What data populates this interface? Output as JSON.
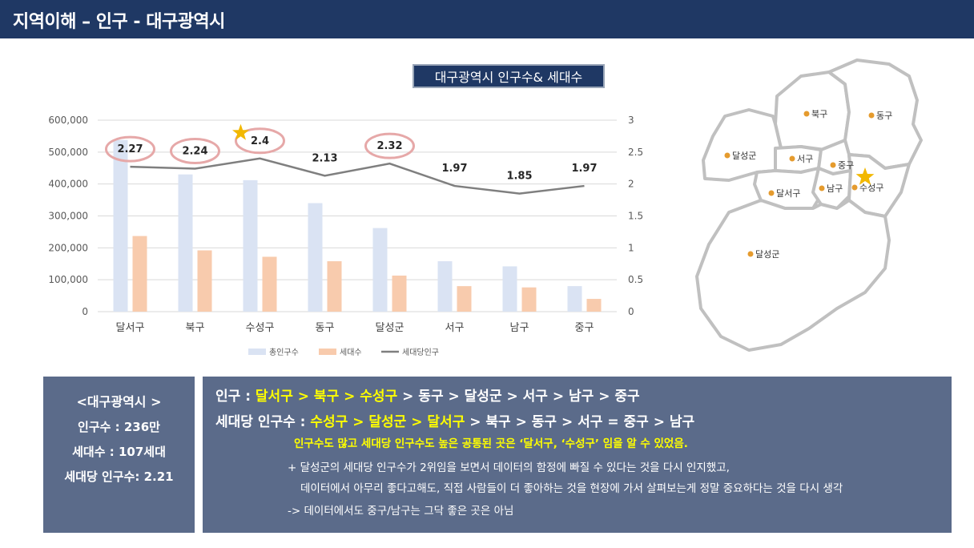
{
  "header": {
    "title": "지역이해 – 인구 - 대구광역시"
  },
  "chart_title": "대구광역시 인구수& 세대수",
  "chart_data": {
    "type": "bar",
    "categories": [
      "달서구",
      "북구",
      "수성구",
      "동구",
      "달성군",
      "서구",
      "남구",
      "중구"
    ],
    "series": [
      {
        "name": "총인구수",
        "type": "bar",
        "axis": "left",
        "color": "#dae3f3",
        "values": [
          538000,
          430000,
          412000,
          340000,
          262000,
          158000,
          142000,
          80000
        ]
      },
      {
        "name": "세대수",
        "type": "bar",
        "axis": "left",
        "color": "#f8cbad",
        "values": [
          237000,
          192000,
          172000,
          158000,
          113000,
          80000,
          76000,
          40000
        ]
      },
      {
        "name": "세대당인구",
        "type": "line",
        "axis": "right",
        "color": "#7f7f7f",
        "values": [
          2.27,
          2.24,
          2.4,
          2.13,
          2.32,
          1.97,
          1.85,
          1.97
        ]
      }
    ],
    "data_labels": [
      "2.27",
      "2.24",
      "2.4",
      "2.13",
      "2.32",
      "1.97",
      "1.85",
      "1.97"
    ],
    "y_left": {
      "ylim": [
        0,
        600000
      ],
      "ticks": [
        "0",
        "100,000",
        "200,000",
        "300,000",
        "400,000",
        "500,000",
        "600,000"
      ]
    },
    "y_right": {
      "ylim": [
        0,
        3
      ],
      "ticks": [
        "0",
        "0.5",
        "1",
        "1.5",
        "2",
        "2.5",
        "3"
      ]
    },
    "highlighted": [
      "달서구",
      "북구",
      "수성구",
      "달성군"
    ],
    "star": "수성구",
    "grid": true,
    "legend_position": "bottom"
  },
  "map": {
    "labels": [
      "북구",
      "동구",
      "달성군",
      "서구",
      "중구",
      "달서구",
      "남구",
      "수성구",
      "달성군"
    ],
    "dot_color": "#e59b2e",
    "star_color": "#f2b800"
  },
  "summary": {
    "title": "<대구광역시 >",
    "population": "인구수 : 236만",
    "households": "세대수 : 107세대",
    "per_household": "세대당 인구수: 2.21"
  },
  "detail": {
    "line1": {
      "prefix": "인구 : ",
      "highlight": "달서구 > 북구 > 수성구",
      "rest": " > 동구 > 달성군 > 서구 > 남구 > 중구"
    },
    "line2": {
      "prefix": "세대당 인구수 : ",
      "highlight": "수성구 > 달성군 > 달서구",
      "rest": " > 북구 > 동구 > 서구 = 중구 > 남구"
    },
    "highlight_note": "인구수도 많고 세대당 인구수도 높은 공통된 곳은 ‘달서구, ‘수성구’ 임을 알 수 있었음.",
    "note1": "+ 달성군의 세대당 인구수가 2위임을 보면서 데이터의 함정에 빠질 수 있다는 것을 다시 인지했고,",
    "note2": "데이터에서 아무리 좋다고해도, 직접 사람들이 더 좋아하는 것을 현장에 가서 살펴보는게 정말 중요하다는 것을 다시 생각",
    "note3": "-> 데이터에서도 중구/남구는 그닥 좋은 곳은 아님"
  }
}
